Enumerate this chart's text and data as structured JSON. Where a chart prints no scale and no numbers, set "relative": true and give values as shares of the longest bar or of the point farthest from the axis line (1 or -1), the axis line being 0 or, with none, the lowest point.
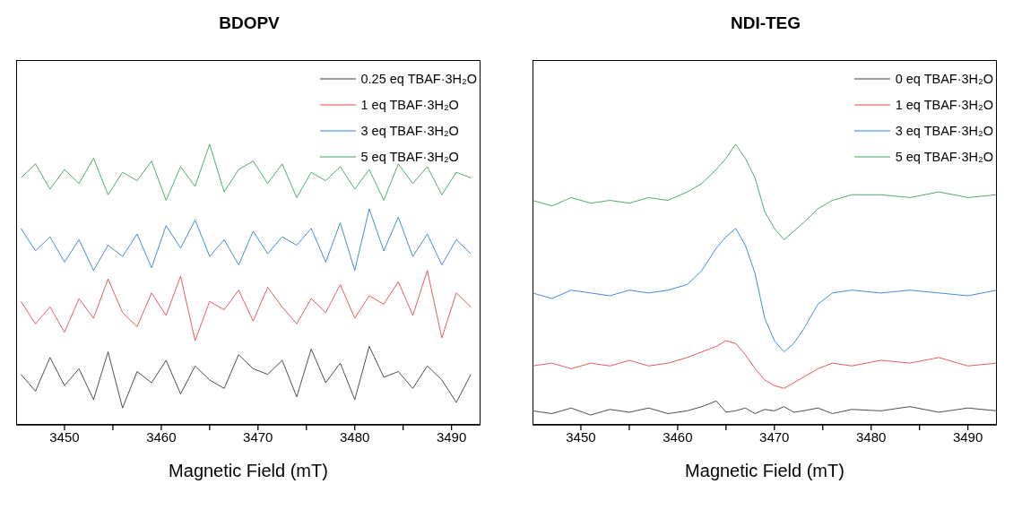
{
  "chart_data": [
    {
      "type": "line",
      "title": "BDOPV",
      "xlabel": "Magnetic Field (mT)",
      "relative": true,
      "legend": "top right",
      "xlim": [
        3445,
        3493
      ],
      "xticks": [
        3450,
        {
          "value": 3455,
          "label": null
        },
        3460,
        {
          "value": 3465,
          "label": null
        },
        3470,
        {
          "value": 3475,
          "label": null
        },
        3480,
        {
          "value": 3485,
          "label": null
        },
        3490
      ],
      "x": [
        3445.5,
        3447,
        3448.5,
        3450,
        3451.5,
        3453,
        3454.5,
        3456,
        3457.5,
        3459,
        3460.5,
        3462,
        3463.5,
        3465,
        3466.5,
        3468,
        3469.5,
        3471,
        3472.5,
        3474,
        3475.5,
        3477,
        3478.5,
        3480,
        3481.5,
        3483,
        3484.5,
        3486,
        3487.5,
        3489,
        3490.5,
        3492
      ],
      "series": [
        {
          "name": "0.25 eq TBAF·3H₂O",
          "color": "#3a3a3a",
          "values": [
            0.18,
            0.12,
            0.24,
            0.14,
            0.2,
            0.09,
            0.26,
            0.06,
            0.19,
            0.15,
            0.23,
            0.11,
            0.21,
            0.16,
            0.13,
            0.25,
            0.2,
            0.18,
            0.23,
            0.1,
            0.27,
            0.15,
            0.22,
            0.09,
            0.28,
            0.17,
            0.19,
            0.13,
            0.21,
            0.16,
            0.08,
            0.18
          ]
        },
        {
          "name": "1 eq TBAF·3H₂O",
          "color": "#e8474a",
          "values": [
            0.44,
            0.36,
            0.42,
            0.33,
            0.45,
            0.38,
            0.52,
            0.4,
            0.35,
            0.47,
            0.39,
            0.53,
            0.3,
            0.44,
            0.41,
            0.48,
            0.37,
            0.49,
            0.42,
            0.36,
            0.45,
            0.4,
            0.5,
            0.38,
            0.46,
            0.43,
            0.51,
            0.39,
            0.55,
            0.31,
            0.47,
            0.42
          ]
        },
        {
          "name": "3 eq TBAF·3H₂O",
          "color": "#2f7de1",
          "values": [
            0.7,
            0.62,
            0.67,
            0.58,
            0.66,
            0.55,
            0.64,
            0.6,
            0.68,
            0.56,
            0.71,
            0.63,
            0.73,
            0.6,
            0.66,
            0.57,
            0.69,
            0.61,
            0.67,
            0.64,
            0.7,
            0.58,
            0.72,
            0.55,
            0.77,
            0.62,
            0.74,
            0.6,
            0.68,
            0.57,
            0.66,
            0.61
          ]
        },
        {
          "name": "5 eq TBAF·3H₂O",
          "color": "#3aa35f",
          "values": [
            0.88,
            0.93,
            0.84,
            0.91,
            0.86,
            0.95,
            0.82,
            0.9,
            0.87,
            0.94,
            0.8,
            0.92,
            0.85,
            1.0,
            0.83,
            0.91,
            0.94,
            0.86,
            0.93,
            0.81,
            0.9,
            0.87,
            0.92,
            0.84,
            0.91,
            0.8,
            0.93,
            0.86,
            0.92,
            0.82,
            0.9,
            0.88
          ]
        }
      ]
    },
    {
      "type": "line",
      "title": "NDI-TEG",
      "xlabel": "Magnetic Field (mT)",
      "relative": true,
      "legend": "top right",
      "xlim": [
        3445,
        3493
      ],
      "xticks": [
        3450,
        {
          "value": 3455,
          "label": null
        },
        3460,
        {
          "value": 3465,
          "label": null
        },
        3470,
        {
          "value": 3475,
          "label": null
        },
        3480,
        {
          "value": 3485,
          "label": null
        },
        3490
      ],
      "x": [
        3445,
        3447,
        3449,
        3451,
        3453,
        3455,
        3457,
        3459,
        3461,
        3462.5,
        3464,
        3465,
        3466,
        3467,
        3468,
        3469,
        3470,
        3471,
        3472,
        3473,
        3474.5,
        3476,
        3478,
        3481,
        3484,
        3487,
        3490,
        3493
      ],
      "series": [
        {
          "name": "0 eq TBAF·3H₂O",
          "color": "#3a3a3a",
          "values": [
            0.05,
            0.04,
            0.06,
            0.035,
            0.055,
            0.045,
            0.06,
            0.04,
            0.05,
            0.065,
            0.085,
            0.045,
            0.05,
            0.06,
            0.04,
            0.055,
            0.05,
            0.065,
            0.045,
            0.05,
            0.06,
            0.04,
            0.055,
            0.05,
            0.065,
            0.045,
            0.06,
            0.05
          ]
        },
        {
          "name": "1 eq TBAF·3H₂O",
          "color": "#e8474a",
          "values": [
            0.21,
            0.22,
            0.2,
            0.22,
            0.21,
            0.23,
            0.21,
            0.22,
            0.24,
            0.26,
            0.28,
            0.3,
            0.29,
            0.25,
            0.2,
            0.16,
            0.14,
            0.13,
            0.15,
            0.17,
            0.2,
            0.22,
            0.21,
            0.23,
            0.22,
            0.24,
            0.21,
            0.22
          ]
        },
        {
          "name": "3 eq TBAF·3H₂O",
          "color": "#2f7de1",
          "values": [
            0.47,
            0.45,
            0.48,
            0.47,
            0.46,
            0.48,
            0.47,
            0.48,
            0.5,
            0.55,
            0.63,
            0.67,
            0.7,
            0.64,
            0.54,
            0.38,
            0.3,
            0.26,
            0.29,
            0.34,
            0.43,
            0.47,
            0.48,
            0.47,
            0.48,
            0.47,
            0.46,
            0.48
          ]
        },
        {
          "name": "5 eq TBAF·3H₂O",
          "color": "#3aa35f",
          "values": [
            0.8,
            0.78,
            0.81,
            0.79,
            0.8,
            0.79,
            0.81,
            0.8,
            0.83,
            0.86,
            0.91,
            0.95,
            1.0,
            0.95,
            0.88,
            0.76,
            0.7,
            0.66,
            0.69,
            0.72,
            0.77,
            0.8,
            0.82,
            0.82,
            0.81,
            0.83,
            0.81,
            0.82
          ]
        }
      ]
    }
  ]
}
